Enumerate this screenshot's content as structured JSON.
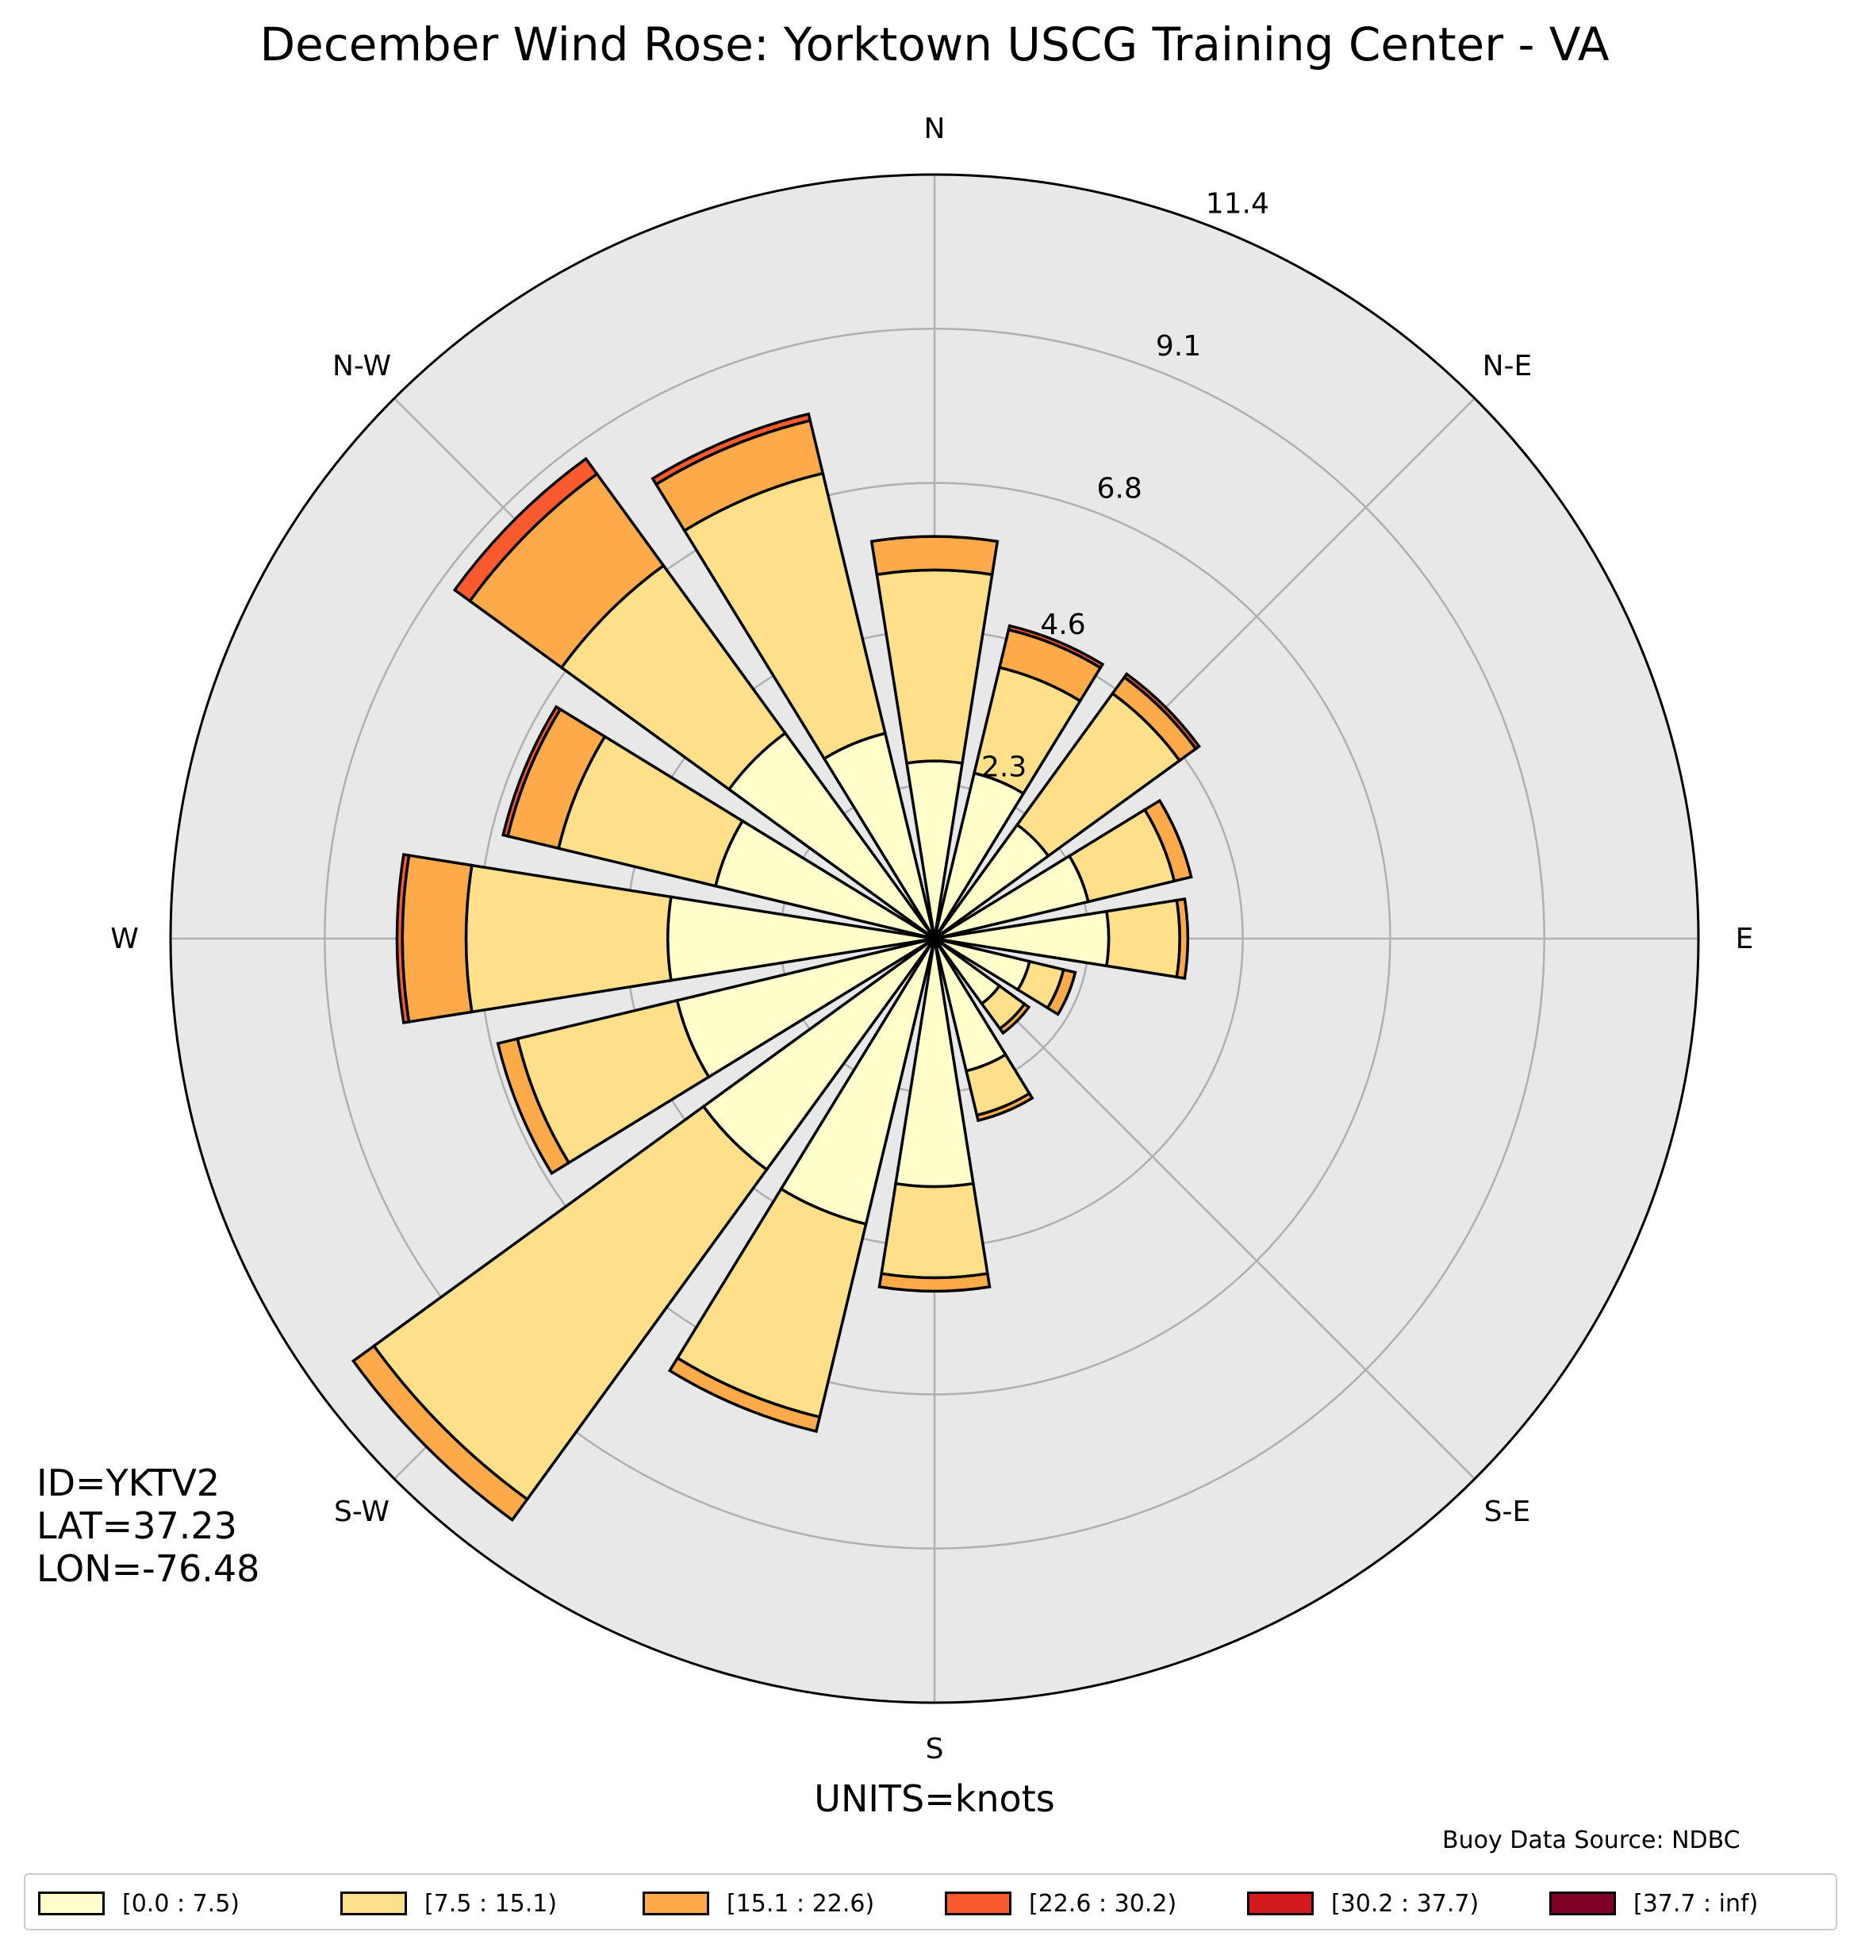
{
  "title": "December Wind Rose: Yorktown USCG Training Center - VA",
  "station": {
    "id": "ID=YKTV2",
    "lat": "LAT=37.23",
    "lon": "LON=-76.48"
  },
  "units": "UNITS=knots",
  "source": "Buoy Data Source: NDBC",
  "colors": {
    "background_disc": "#e8e8e8",
    "grid": "#b0b0b0",
    "bar_edge": "#000000"
  },
  "chart_data": {
    "type": "windrose",
    "title": "December Wind Rose: Yorktown USCG Training Center - VA",
    "radial_max": 11.4,
    "radial_ticks": [
      2.3,
      4.6,
      6.8,
      9.1,
      11.4
    ],
    "radial_tick_labels": [
      "2.3",
      "4.6",
      "6.8",
      "9.1",
      "11.4"
    ],
    "direction_labels": [
      {
        "label": "N",
        "angle": 0
      },
      {
        "label": "N-E",
        "angle": 45
      },
      {
        "label": "E",
        "angle": 90
      },
      {
        "label": "S-E",
        "angle": 135
      },
      {
        "label": "S",
        "angle": 180
      },
      {
        "label": "S-W",
        "angle": 225
      },
      {
        "label": "W",
        "angle": 270
      },
      {
        "label": "N-W",
        "angle": 315
      }
    ],
    "bins": [
      {
        "label": "[0.0 : 7.5)",
        "color": "#ffffcc"
      },
      {
        "label": "[7.5 : 15.1)",
        "color": "#fedf8a"
      },
      {
        "label": "[15.1 : 22.6)",
        "color": "#fcaa4a"
      },
      {
        "label": "[22.6 : 30.2)",
        "color": "#fa5a2e"
      },
      {
        "label": "[30.2 : 37.7)",
        "color": "#d41a1f"
      },
      {
        "label": "[37.7 : inf)",
        "color": "#800026"
      }
    ],
    "directions": [
      0,
      22.5,
      45,
      67.5,
      90,
      112.5,
      135,
      157.5,
      180,
      202.5,
      225,
      247.5,
      270,
      292.5,
      315,
      337.5
    ],
    "frequencies": [
      [
        2.65,
        2.85,
        0.5,
        0,
        0,
        0
      ],
      [
        2.54,
        1.62,
        0.58,
        0.06,
        0,
        0
      ],
      [
        2.1,
        2.42,
        0.3,
        0.06,
        0,
        0
      ],
      [
        2.36,
        1.32,
        0.26,
        0,
        0,
        0
      ],
      [
        2.6,
        1.06,
        0.12,
        0,
        0,
        0
      ],
      [
        1.46,
        0.52,
        0.18,
        0,
        0,
        0
      ],
      [
        1.2,
        0.46,
        0.08,
        0,
        0,
        0
      ],
      [
        2.03,
        0.68,
        0.08,
        0,
        0,
        0
      ],
      [
        3.7,
        1.36,
        0.2,
        0,
        0,
        0
      ],
      [
        4.38,
        2.96,
        0.22,
        0,
        0,
        0
      ],
      [
        4.26,
        6.08,
        0.38,
        0,
        0,
        0
      ],
      [
        3.95,
        2.45,
        0.3,
        0,
        0,
        0
      ],
      [
        3.98,
        3.01,
        0.95,
        0.08,
        0,
        0
      ],
      [
        3.36,
        2.41,
        0.78,
        0.07,
        0,
        0
      ],
      [
        3.79,
        3.09,
        1.69,
        0.28,
        0,
        0
      ],
      [
        3.15,
        3.99,
        0.81,
        0.1,
        0,
        0
      ]
    ]
  }
}
